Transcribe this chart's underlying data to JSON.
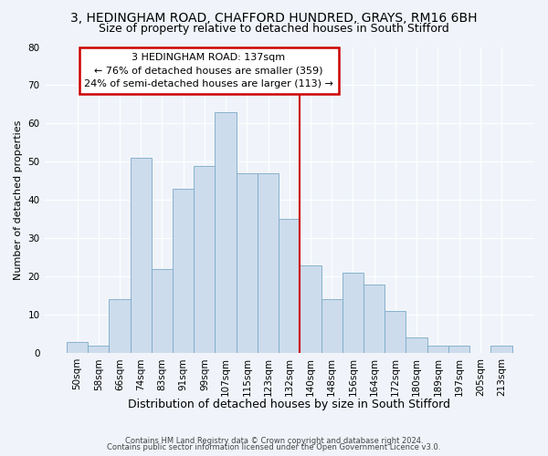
{
  "title_line1": "3, HEDINGHAM ROAD, CHAFFORD HUNDRED, GRAYS, RM16 6BH",
  "title_line2": "Size of property relative to detached houses in South Stifford",
  "xlabel": "Distribution of detached houses by size in South Stifford",
  "ylabel": "Number of detached properties",
  "categories": [
    "50sqm",
    "58sqm",
    "66sqm",
    "74sqm",
    "83sqm",
    "91sqm",
    "99sqm",
    "107sqm",
    "115sqm",
    "123sqm",
    "132sqm",
    "140sqm",
    "148sqm",
    "156sqm",
    "164sqm",
    "172sqm",
    "180sqm",
    "189sqm",
    "197sqm",
    "205sqm",
    "213sqm"
  ],
  "values": [
    3,
    2,
    14,
    51,
    22,
    43,
    49,
    63,
    47,
    47,
    35,
    23,
    14,
    21,
    18,
    11,
    4,
    2,
    2,
    0,
    2
  ],
  "bar_color": "#cddcec",
  "bar_edge_color": "#7aaac8",
  "ylim": [
    0,
    80
  ],
  "yticks": [
    0,
    10,
    20,
    30,
    40,
    50,
    60,
    70,
    80
  ],
  "annotation_title": "3 HEDINGHAM ROAD: 137sqm",
  "annotation_line1": "← 76% of detached houses are smaller (359)",
  "annotation_line2": "24% of semi-detached houses are larger (113) →",
  "annotation_box_color": "#ffffff",
  "annotation_box_edge_color": "#cc0000",
  "vline_color": "#cc0000",
  "vline_x_index": 11,
  "footer_line1": "Contains HM Land Registry data © Crown copyright and database right 2024.",
  "footer_line2": "Contains public sector information licensed under the Open Government Licence v3.0.",
  "background_color": "#f0f4fa",
  "plot_bg_color": "#f0f4fa",
  "grid_color": "#ffffff",
  "title1_fontsize": 10,
  "title2_fontsize": 9,
  "ylabel_fontsize": 8,
  "xlabel_fontsize": 9,
  "tick_fontsize": 7.5,
  "annot_fontsize": 8
}
